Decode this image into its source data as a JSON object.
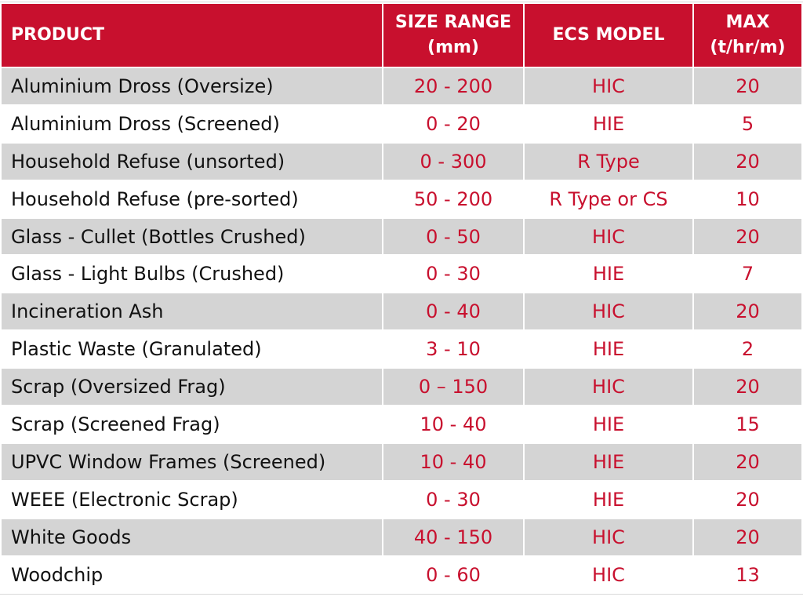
{
  "table": {
    "headers": {
      "product": "PRODUCT",
      "size_range_line1": "SIZE RANGE",
      "size_range_line2": "(mm)",
      "ecs_model": "ECS MODEL",
      "max_line1": "MAX",
      "max_line2": "(t/hr/m)"
    },
    "rows": [
      {
        "product": "Aluminium Dross (Oversize)",
        "size_range": "20 - 200",
        "ecs_model": "HIC",
        "max": "20"
      },
      {
        "product": "Aluminium Dross (Screened)",
        "size_range": "0 - 20",
        "ecs_model": "HIE",
        "max": "5"
      },
      {
        "product": "Household Refuse (unsorted)",
        "size_range": "0 - 300",
        "ecs_model": "R Type",
        "max": "20"
      },
      {
        "product": "Household Refuse (pre-sorted)",
        "size_range": "50 - 200",
        "ecs_model": "R Type or CS",
        "max": "10"
      },
      {
        "product": "Glass - Cullet (Bottles Crushed)",
        "size_range": "0 - 50",
        "ecs_model": "HIC",
        "max": "20"
      },
      {
        "product": "Glass - Light Bulbs (Crushed)",
        "size_range": "0 - 30",
        "ecs_model": "HIE",
        "max": "7"
      },
      {
        "product": "Incineration Ash",
        "size_range": "0 - 40",
        "ecs_model": "HIC",
        "max": "20"
      },
      {
        "product": "Plastic Waste (Granulated)",
        "size_range": "3 - 10",
        "ecs_model": "HIE",
        "max": "2"
      },
      {
        "product": "Scrap (Oversized Frag)",
        "size_range": "0 – 150",
        "ecs_model": "HIC",
        "max": "20"
      },
      {
        "product": "Scrap (Screened Frag)",
        "size_range": "10 - 40",
        "ecs_model": "HIE",
        "max": "15"
      },
      {
        "product": "UPVC Window Frames (Screened)",
        "size_range": "10 - 40",
        "ecs_model": "HIE",
        "max": "20"
      },
      {
        "product": "WEEE (Electronic Scrap)",
        "size_range": "0 - 30",
        "ecs_model": "HIE",
        "max": "20"
      },
      {
        "product": "White Goods",
        "size_range": "40 - 150",
        "ecs_model": "HIC",
        "max": "20"
      },
      {
        "product": "Woodchip",
        "size_range": "0 - 60",
        "ecs_model": "HIC",
        "max": "13"
      }
    ]
  },
  "colors": {
    "header_bg": "#c8102e",
    "header_text": "#ffffff",
    "value_text": "#c8102e",
    "product_text": "#111111",
    "odd_row_bg": "#d4d4d4",
    "even_row_bg": "#ffffff"
  }
}
